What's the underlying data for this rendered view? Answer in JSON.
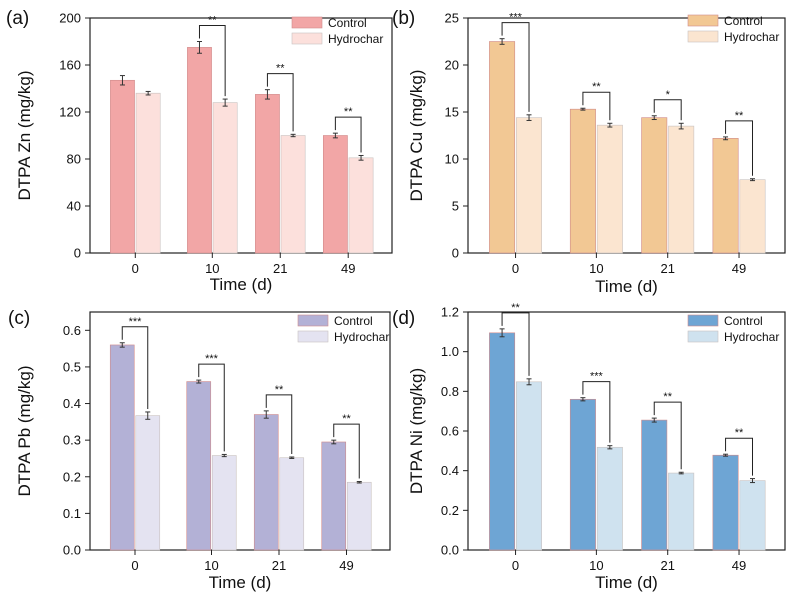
{
  "chart_data": [
    {
      "panel": "(a)",
      "type": "bar",
      "categories": [
        "0",
        "10",
        "21",
        "49"
      ],
      "xlabel": "Time (d)",
      "ylabel": "DTPA Zn (mg/kg)",
      "ylim": [
        0,
        200
      ],
      "yticks": [
        "0",
        "40",
        "80",
        "120",
        "160",
        "200"
      ],
      "legend_position": "top-right",
      "series": [
        {
          "name": "Control",
          "values": [
            147,
            175,
            135,
            100
          ],
          "errors": [
            4,
            5,
            4,
            2
          ],
          "color": "#f2a6a6"
        },
        {
          "name": "Hydrochar",
          "values": [
            136,
            128,
            100,
            81
          ],
          "errors": [
            1.5,
            3,
            1,
            2
          ],
          "color": "#fce0dc"
        }
      ],
      "significance": [
        "",
        "**",
        "**",
        "**"
      ]
    },
    {
      "panel": "(b)",
      "type": "bar",
      "categories": [
        "0",
        "10",
        "21",
        "49"
      ],
      "xlabel": "Time (d)",
      "ylabel": "DTPA Cu (mg/kg)",
      "ylim": [
        0,
        25
      ],
      "yticks": [
        "0",
        "5",
        "10",
        "15",
        "20",
        "25"
      ],
      "legend_position": "top-right",
      "series": [
        {
          "name": "Control",
          "values": [
            22.5,
            15.3,
            14.4,
            12.2
          ],
          "errors": [
            0.3,
            0.1,
            0.2,
            0.15
          ],
          "color": "#f2c894"
        },
        {
          "name": "Hydrochar",
          "values": [
            14.4,
            13.6,
            13.5,
            7.8
          ],
          "errors": [
            0.3,
            0.2,
            0.3,
            0.1
          ],
          "color": "#fbe5d0"
        }
      ],
      "significance": [
        "***",
        "**",
        "*",
        "**"
      ]
    },
    {
      "panel": "(c)",
      "type": "bar",
      "categories": [
        "0",
        "10",
        "21",
        "49"
      ],
      "xlabel": "Time (d)",
      "ylabel": "DTPA Pb (mg/kg)",
      "ylim": [
        0,
        0.65
      ],
      "yticks": [
        "0.0",
        "0.1",
        "0.2",
        "0.3",
        "0.4",
        "0.5",
        "0.6"
      ],
      "legend_position": "top-right",
      "series": [
        {
          "name": "Control",
          "values": [
            0.56,
            0.46,
            0.37,
            0.295
          ],
          "errors": [
            0.006,
            0.004,
            0.01,
            0.005
          ],
          "color": "#b3b1d6"
        },
        {
          "name": "Hydrochar",
          "values": [
            0.367,
            0.258,
            0.252,
            0.185
          ],
          "errors": [
            0.01,
            0.003,
            0.002,
            0.002
          ],
          "color": "#e4e3f1"
        }
      ],
      "significance": [
        "***",
        "***",
        "**",
        "**"
      ]
    },
    {
      "panel": "(d)",
      "type": "bar",
      "categories": [
        "0",
        "10",
        "21",
        "49"
      ],
      "xlabel": "Time (d)",
      "ylabel": "DTPA Ni (mg/kg)",
      "ylim": [
        0,
        1.2
      ],
      "yticks": [
        "0.0",
        "0.2",
        "0.4",
        "0.6",
        "0.8",
        "1.0",
        "1.2"
      ],
      "legend_position": "top-right",
      "series": [
        {
          "name": "Control",
          "values": [
            1.095,
            0.76,
            0.655,
            0.478
          ],
          "errors": [
            0.02,
            0.008,
            0.01,
            0.005
          ],
          "color": "#6ea5d4"
        },
        {
          "name": "Hydrochar",
          "values": [
            0.848,
            0.518,
            0.388,
            0.35
          ],
          "errors": [
            0.015,
            0.008,
            0.004,
            0.01
          ],
          "color": "#cfe2ef"
        }
      ],
      "significance": [
        "**",
        "***",
        "**",
        "**"
      ]
    }
  ]
}
